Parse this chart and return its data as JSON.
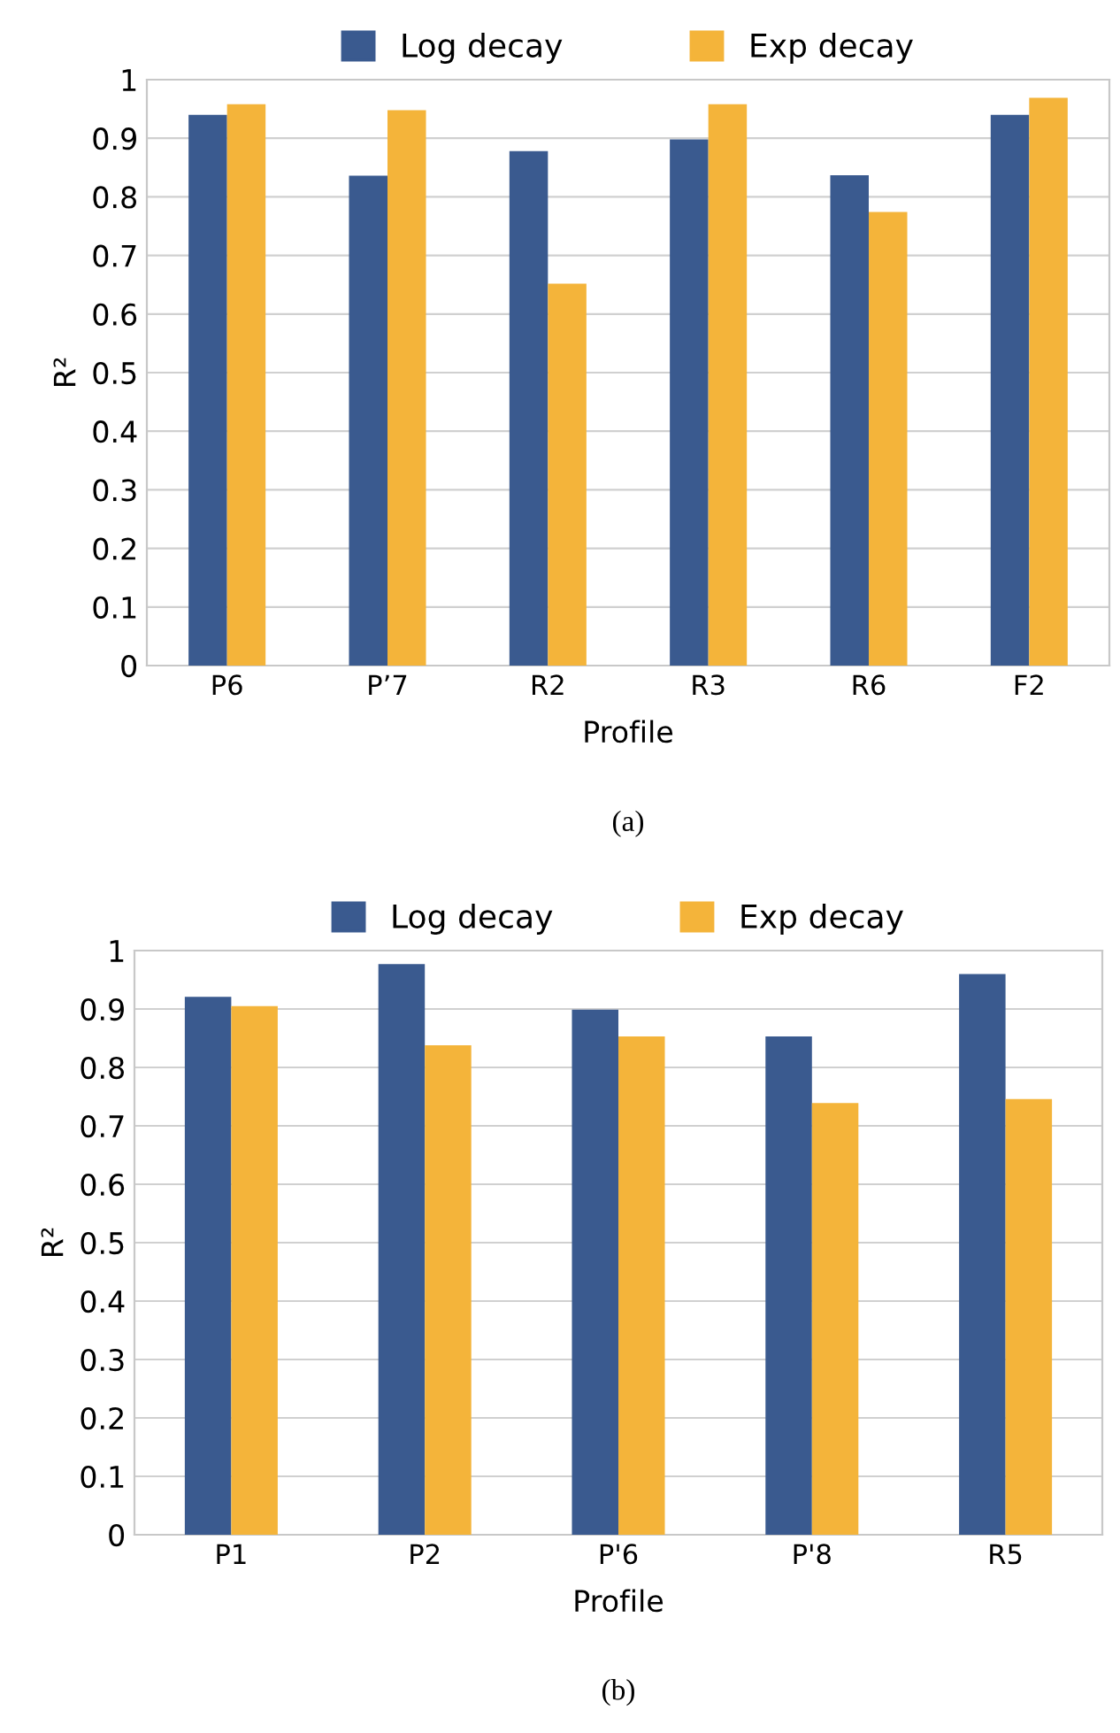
{
  "chart_data": [
    {
      "type": "bar",
      "xlabel": "Profile",
      "ylabel": "R²",
      "categories": [
        "P6",
        "P’7",
        "R2",
        "R3",
        "R6",
        "F2"
      ],
      "series": [
        {
          "name": "Log decay",
          "color": "#3a5a8f",
          "values": [
            0.94,
            0.836,
            0.878,
            0.898,
            0.837,
            0.94
          ]
        },
        {
          "name": "Exp decay",
          "color": "#f4b43a",
          "values": [
            0.958,
            0.948,
            0.652,
            0.958,
            0.774,
            0.969
          ]
        }
      ],
      "ylim": [
        0,
        1
      ],
      "yticks": [
        0,
        0.1,
        0.2,
        0.3,
        0.4,
        0.5,
        0.6,
        0.7,
        0.8,
        0.9,
        1
      ],
      "grid": "y",
      "legend": "top",
      "annotations": [
        "(a)"
      ]
    },
    {
      "type": "bar",
      "xlabel": "Profile",
      "ylabel": "R²",
      "categories": [
        "P1",
        "P2",
        "P'6",
        "P'8",
        "R5"
      ],
      "series": [
        {
          "name": "Log decay",
          "color": "#3a5a8f",
          "values": [
            0.921,
            0.977,
            0.899,
            0.853,
            0.96
          ]
        },
        {
          "name": "Exp decay",
          "color": "#f4b43a",
          "values": [
            0.905,
            0.838,
            0.853,
            0.739,
            0.746
          ]
        }
      ],
      "ylim": [
        0,
        1
      ],
      "yticks": [
        0,
        0.1,
        0.2,
        0.3,
        0.4,
        0.5,
        0.6,
        0.7,
        0.8,
        0.9,
        1
      ],
      "grid": "y",
      "legend": "top",
      "annotations": [
        "(b)"
      ]
    }
  ]
}
